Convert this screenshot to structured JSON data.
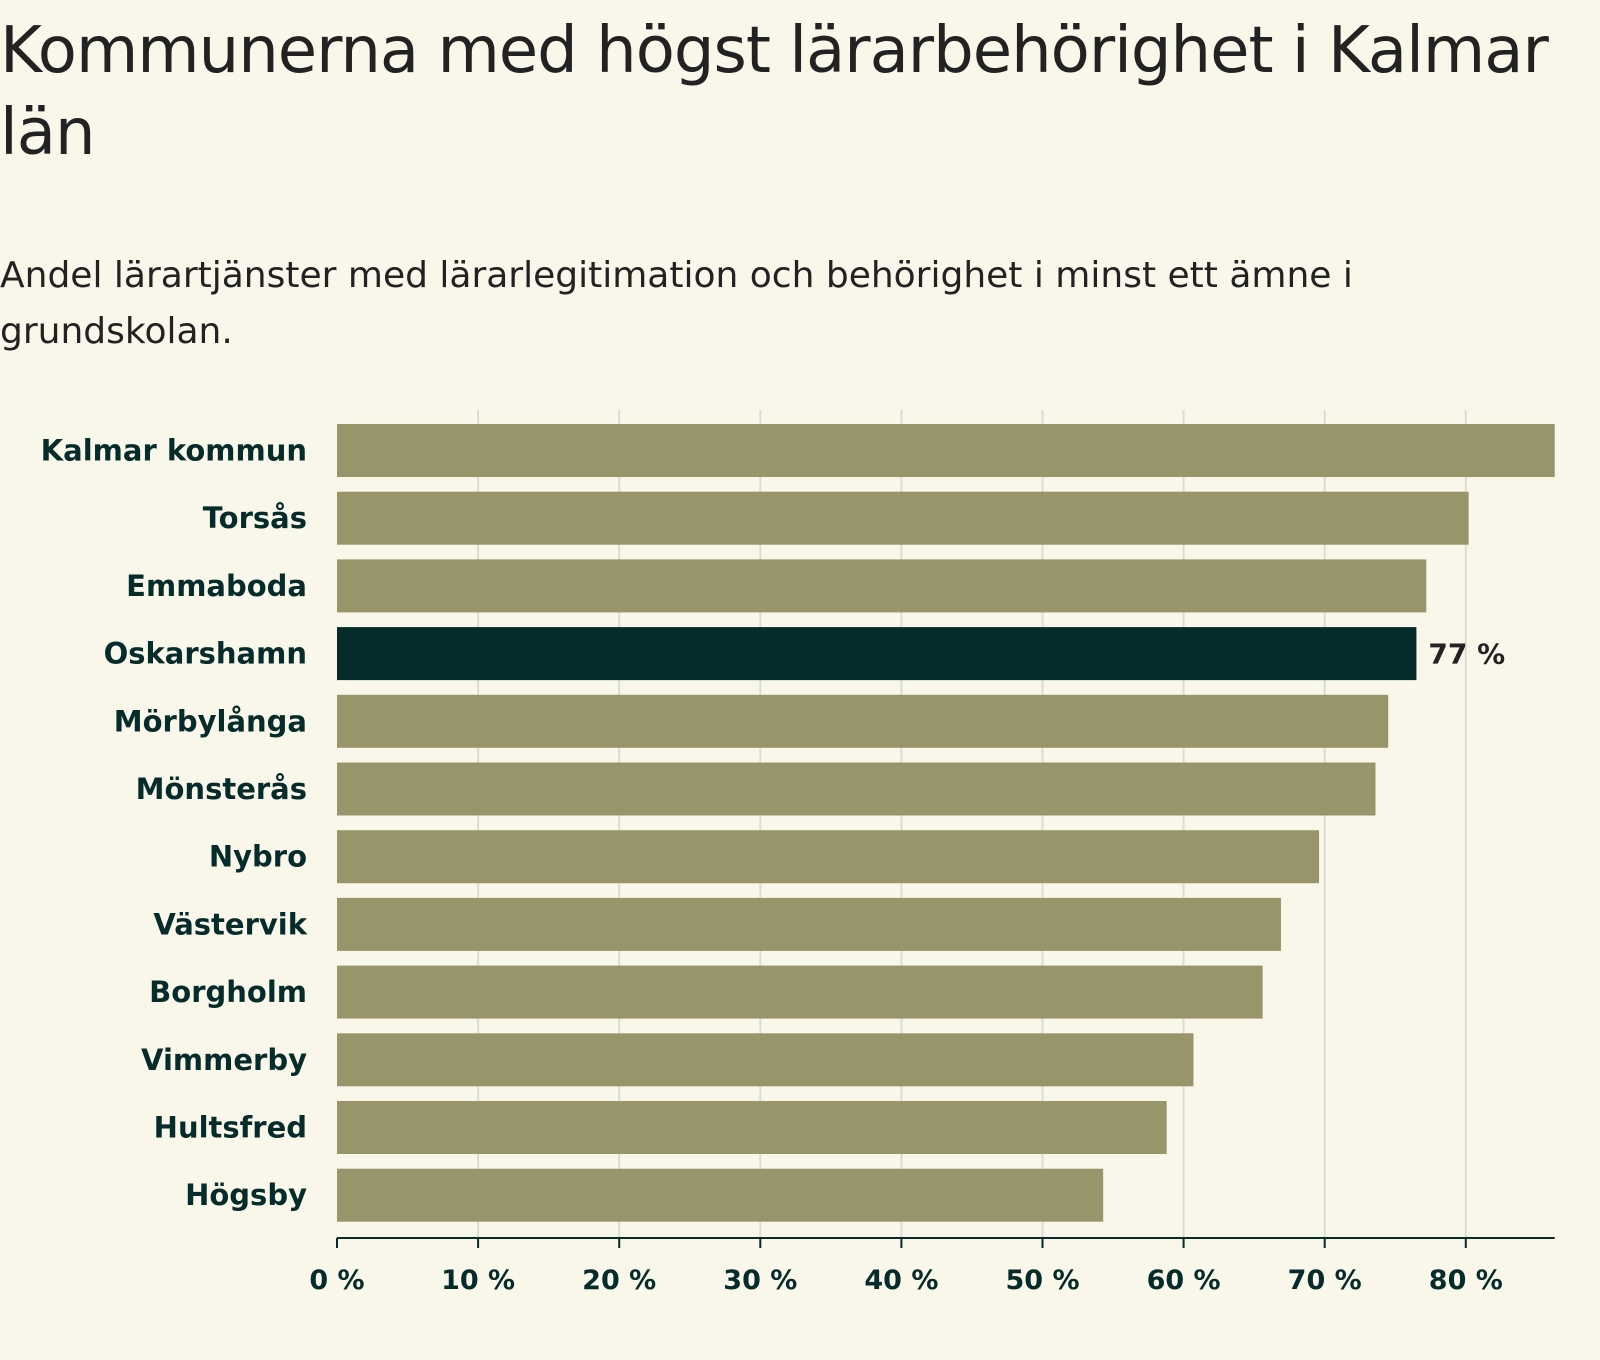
{
  "title": "Kommunerna med högst lärarbehörighet i Kalmar län",
  "subtitle": "Andel lärartjänster med lärarlegitimation och behörighet i minst ett ämne i grundskolan.",
  "colors": {
    "bar": "#99956a",
    "highlight": "#052b2b",
    "grid": "#dddcd4",
    "axis": "#052b2b",
    "label": "#052b2b"
  },
  "chart_data": {
    "type": "bar",
    "orientation": "horizontal",
    "categories": [
      "Kalmar kommun",
      "Torsås",
      "Emmaboda",
      "Oskarshamn",
      "Mörbylånga",
      "Mönsterås",
      "Nybro",
      "Västervik",
      "Borgholm",
      "Vimmerby",
      "Hultsfred",
      "Högsby"
    ],
    "values": [
      86.3,
      80.2,
      77.2,
      76.5,
      74.5,
      73.6,
      69.6,
      66.9,
      65.6,
      60.7,
      58.8,
      54.3
    ],
    "highlight": "Oskarshamn",
    "highlight_label": "77 %",
    "xticks": [
      0,
      10,
      20,
      30,
      40,
      50,
      60,
      70,
      80
    ],
    "xtick_labels": [
      "0 %",
      "10 %",
      "20 %",
      "30 %",
      "40 %",
      "50 %",
      "60 %",
      "70 %",
      "80 %"
    ],
    "xlim": [
      0,
      86.3
    ],
    "grid": true,
    "xlabel": "",
    "ylabel": ""
  }
}
